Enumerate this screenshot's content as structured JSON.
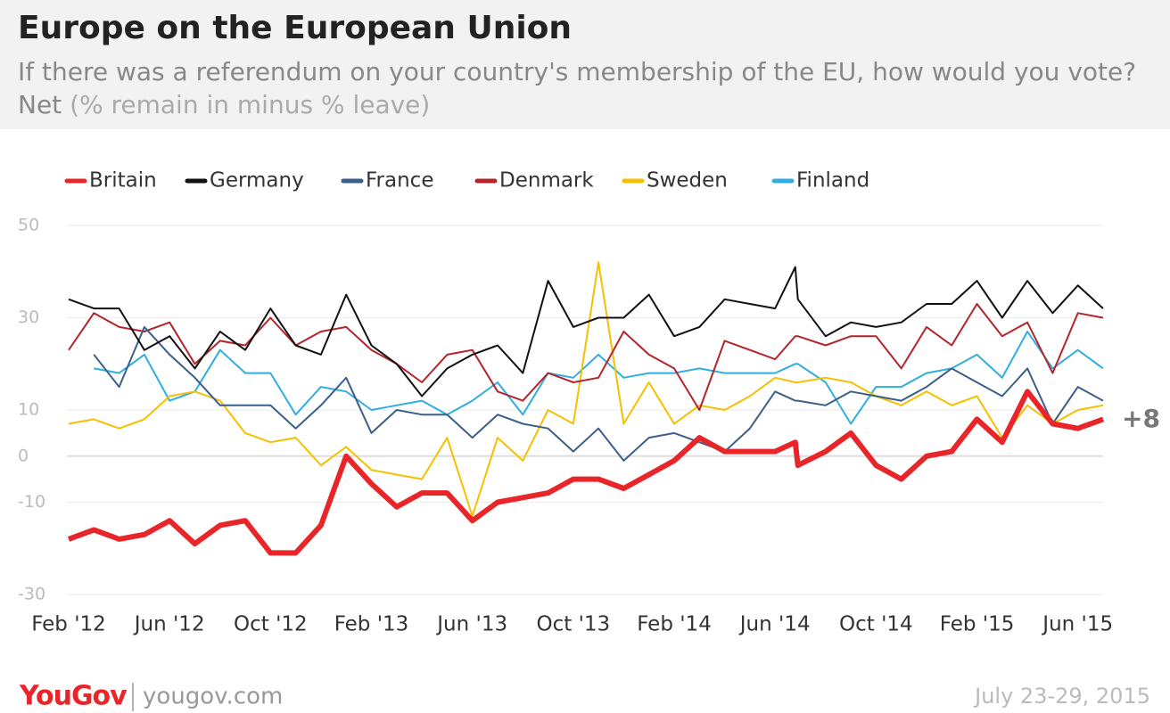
{
  "chart_data": {
    "type": "line",
    "title": "Europe on the European Union",
    "subtitle": "If there was a referendum on your country's membership of the EU, how would you vote?",
    "subtitle_net": "Net",
    "subtitle_note": "(% remain in minus % leave)",
    "annotation": "+8",
    "brand": "YouGov",
    "website": "yougov.com",
    "date": "July 23-29, 2015",
    "x": [
      0,
      1,
      2,
      3,
      4,
      5,
      6,
      7,
      8,
      9,
      10,
      11,
      12,
      13,
      14,
      15,
      16,
      17,
      18,
      19,
      20,
      21,
      22,
      23,
      24,
      25,
      26,
      27,
      28,
      28.8,
      28.9,
      30,
      31,
      32,
      33,
      34,
      35,
      36,
      37,
      38,
      39,
      40,
      41
    ],
    "xlim": [
      0,
      41
    ],
    "xticks": [
      {
        "value": 0,
        "label": "Feb '12"
      },
      {
        "value": 4,
        "label": "Jun '12"
      },
      {
        "value": 8,
        "label": "Oct '12"
      },
      {
        "value": 12,
        "label": "Feb '13"
      },
      {
        "value": 16,
        "label": "Jun '13"
      },
      {
        "value": 20,
        "label": "Oct '13"
      },
      {
        "value": 24,
        "label": "Feb '14"
      },
      {
        "value": 28,
        "label": "Jun '14"
      },
      {
        "value": 32,
        "label": "Oct '14"
      },
      {
        "value": 36,
        "label": "Feb '15"
      },
      {
        "value": 40,
        "label": "Jun '15"
      }
    ],
    "ylim": [
      -30,
      50
    ],
    "yticks": [
      50,
      30,
      10,
      0,
      -10,
      -30
    ],
    "grid": true,
    "series": [
      {
        "name": "Britain",
        "color": "#e8262a",
        "values": [
          -18,
          -16,
          -18,
          -17,
          -14,
          -19,
          -15,
          -14,
          -21,
          -21,
          -15,
          0,
          -6,
          -11,
          -8,
          -8,
          -14,
          -10,
          -9,
          -8,
          -5,
          -5,
          -7,
          -4,
          -1,
          4,
          1,
          1,
          1,
          3,
          -2,
          1,
          5,
          -2,
          -5,
          0,
          1,
          8,
          3,
          14,
          7,
          6,
          8
        ]
      },
      {
        "name": "Germany",
        "color": "#111111",
        "values": [
          34,
          32,
          32,
          23,
          26,
          19,
          27,
          23,
          32,
          24,
          22,
          35,
          24,
          20,
          13,
          19,
          22,
          24,
          18,
          38,
          28,
          30,
          30,
          35,
          26,
          28,
          34,
          33,
          32,
          41,
          34,
          26,
          29,
          28,
          29,
          33,
          33,
          38,
          30,
          38,
          31,
          37,
          32
        ]
      },
      {
        "name": "France",
        "color": "#3b5f8a",
        "values": [
          null,
          22,
          15,
          28,
          22,
          17,
          11,
          11,
          11,
          6,
          11,
          17,
          5,
          10,
          9,
          9,
          4,
          9,
          7,
          6,
          1,
          6,
          -1,
          4,
          5,
          3,
          1,
          6,
          14,
          12,
          12,
          11,
          14,
          13,
          12,
          15,
          19,
          16,
          13,
          19,
          7,
          15,
          12
        ]
      },
      {
        "name": "Denmark",
        "color": "#b5242a",
        "values": [
          23,
          31,
          28,
          27,
          29,
          20,
          25,
          24,
          30,
          24,
          27,
          28,
          23,
          20,
          16,
          22,
          23,
          14,
          12,
          18,
          16,
          17,
          27,
          22,
          19,
          10,
          25,
          23,
          21,
          26,
          26,
          24,
          26,
          26,
          19,
          28,
          24,
          33,
          26,
          29,
          18,
          31,
          30
        ]
      },
      {
        "name": "Sweden",
        "color": "#f5c000",
        "values": [
          7,
          8,
          6,
          8,
          13,
          14,
          12,
          5,
          3,
          4,
          -2,
          2,
          -3,
          -4,
          -5,
          4,
          -13,
          4,
          -1,
          10,
          7,
          42,
          7,
          16,
          7,
          11,
          10,
          13,
          17,
          16,
          16,
          17,
          16,
          13,
          11,
          14,
          11,
          13,
          4,
          11,
          7,
          10,
          11
        ]
      },
      {
        "name": "Finland",
        "color": "#30aee0",
        "values": [
          null,
          19,
          18,
          22,
          12,
          14,
          23,
          18,
          18,
          9,
          15,
          14,
          10,
          11,
          12,
          9,
          12,
          16,
          9,
          18,
          17,
          22,
          17,
          18,
          18,
          19,
          18,
          18,
          18,
          20,
          20,
          16,
          7,
          15,
          15,
          18,
          19,
          22,
          17,
          27,
          19,
          23,
          19
        ]
      }
    ]
  }
}
